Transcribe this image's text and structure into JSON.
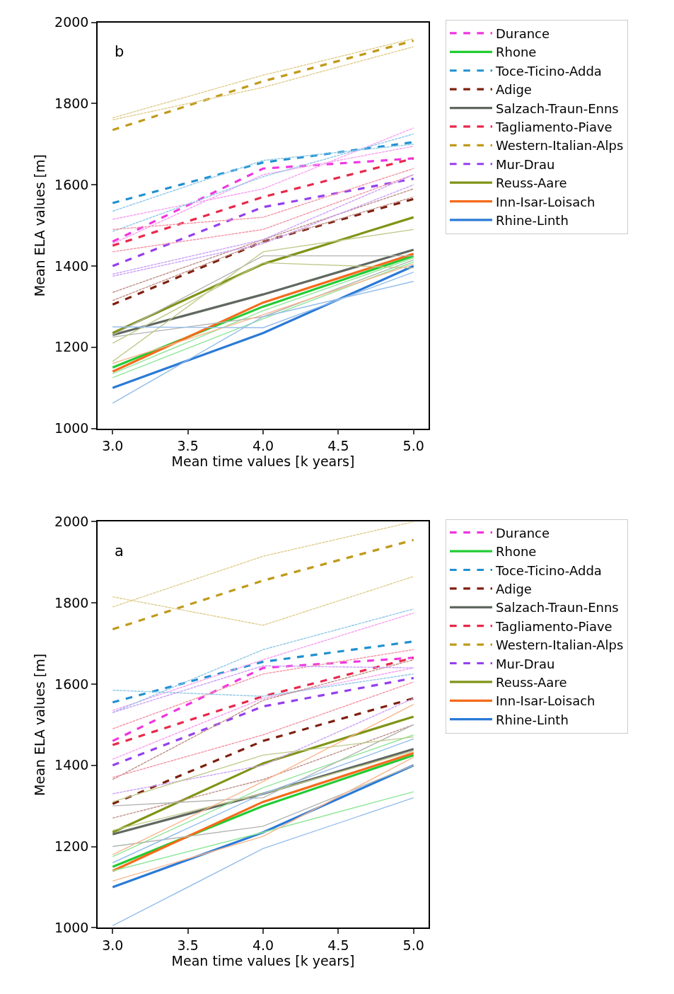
{
  "chart_data": [
    {
      "type": "line",
      "annotations": [
        "b"
      ],
      "xlabel": "Mean time values [k years]",
      "ylabel": "Mean ELA values [m]",
      "x": [
        3,
        4,
        5
      ],
      "xlim": [
        2.9,
        5.1
      ],
      "xticks": [
        {
          "value": 3,
          "label": "3.0"
        },
        {
          "value": 3.5,
          "label": "3.5"
        },
        {
          "value": 4,
          "label": "4.0"
        },
        {
          "value": 4.5,
          "label": "4.5"
        },
        {
          "value": 5,
          "label": "5.0"
        }
      ],
      "ylim": [
        1000,
        2000
      ],
      "yticks": [
        1000,
        1200,
        1400,
        1600,
        1800,
        2000
      ],
      "legend": "top right",
      "marker": "none",
      "series": [
        {
          "name": "Durance",
          "color": "#f035e0",
          "values": [
            1460,
            1640,
            1665
          ],
          "line_style": "dashed"
        },
        {
          "name": "Rhone",
          "color": "#22cc33",
          "values": [
            1150,
            1300,
            1425
          ],
          "line_style": "solid"
        },
        {
          "name": "Toce-Ticino-Adda",
          "color": "#1f90d0",
          "values": [
            1555,
            1655,
            1705
          ],
          "line_style": "dashed"
        },
        {
          "name": "Adige",
          "color": "#7f1f0f",
          "values": [
            1305,
            1460,
            1565
          ],
          "line_style": "dashed"
        },
        {
          "name": "Salzach-Traun-Enns",
          "color": "#606860",
          "values": [
            1230,
            1330,
            1440
          ],
          "line_style": "solid"
        },
        {
          "name": "Tagliamento-Piave",
          "color": "#e8284a",
          "values": [
            1450,
            1570,
            1665
          ],
          "line_style": "dashed"
        },
        {
          "name": "Western-Italian-Alps",
          "color": "#c09a1a",
          "values": [
            1735,
            1855,
            1955
          ],
          "line_style": "dashed"
        },
        {
          "name": "Mur-Drau",
          "color": "#9440ee",
          "values": [
            1400,
            1545,
            1615
          ],
          "line_style": "dashed"
        },
        {
          "name": "Reuss-Aare",
          "color": "#7f9416",
          "values": [
            1235,
            1405,
            1520
          ],
          "line_style": "solid"
        },
        {
          "name": "Inn-Isar-Loisach",
          "color": "#f56a1a",
          "values": [
            1140,
            1310,
            1430
          ],
          "line_style": "solid"
        },
        {
          "name": "Rhine-Linth",
          "color": "#2a7ad6",
          "values": [
            1100,
            1235,
            1400
          ],
          "line_style": "solid"
        },
        {
          "color": "#f7a0f0",
          "values": [
            1515,
            1590,
            1740
          ],
          "line_style": "dashed"
        },
        {
          "color": "#f7a0f0",
          "values": [
            1455,
            1625,
            1695
          ],
          "line_style": "dashed"
        },
        {
          "color": "#90e699",
          "values": [
            1135,
            1290,
            1420
          ],
          "line_style": "solid"
        },
        {
          "color": "#90e699",
          "values": [
            1125,
            1270,
            1410
          ],
          "line_style": "solid"
        },
        {
          "color": "#8fc8e8",
          "values": [
            1535,
            1660,
            1700
          ],
          "line_style": "dashed"
        },
        {
          "color": "#8fc8e8",
          "values": [
            1485,
            1620,
            1725
          ],
          "line_style": "dashed"
        },
        {
          "color": "#bf8f87",
          "values": [
            1335,
            1465,
            1590
          ],
          "line_style": "dashed"
        },
        {
          "color": "#bf8f87",
          "values": [
            1315,
            1460,
            1570
          ],
          "line_style": "dashed"
        },
        {
          "color": "#b0b4b0",
          "values": [
            1230,
            1425,
            1425
          ],
          "line_style": "solid"
        },
        {
          "color": "#b0b4b0",
          "values": [
            1225,
            1275,
            1415
          ],
          "line_style": "solid"
        },
        {
          "color": "#f394a5",
          "values": [
            1490,
            1520,
            1640
          ],
          "line_style": "dashed"
        },
        {
          "color": "#f394a5",
          "values": [
            1435,
            1490,
            1625
          ],
          "line_style": "dashed"
        },
        {
          "color": "#e0cd8d",
          "values": [
            1765,
            1870,
            1960
          ],
          "line_style": "dashed"
        },
        {
          "color": "#e0cd8d",
          "values": [
            1760,
            1840,
            1940
          ],
          "line_style": "dashed"
        },
        {
          "color": "#caa0f7",
          "values": [
            1380,
            1465,
            1625
          ],
          "line_style": "dashed"
        },
        {
          "color": "#caa0f7",
          "values": [
            1375,
            1455,
            1600
          ],
          "line_style": "dashed"
        },
        {
          "color": "#bfca8b",
          "values": [
            1165,
            1435,
            1490
          ],
          "line_style": "solid"
        },
        {
          "color": "#bfca8b",
          "values": [
            1210,
            1408,
            1395
          ],
          "line_style": "solid"
        },
        {
          "color": "#fab58d",
          "values": [
            1160,
            1280,
            1405
          ],
          "line_style": "solid"
        },
        {
          "color": "#95bdeb",
          "values": [
            1250,
            1248,
            1385
          ],
          "line_style": "solid"
        },
        {
          "color": "#95bdeb",
          "values": [
            1062,
            1275,
            1362
          ],
          "line_style": "solid"
        }
      ]
    },
    {
      "type": "line",
      "annotations": [
        "a"
      ],
      "xlabel": "Mean time values [k years]",
      "ylabel": "Mean ELA values [m]",
      "x": [
        3,
        4,
        5
      ],
      "xlim": [
        2.9,
        5.1
      ],
      "xticks": [
        {
          "value": 3,
          "label": "3.0"
        },
        {
          "value": 3.5,
          "label": "3.5"
        },
        {
          "value": 4,
          "label": "4.0"
        },
        {
          "value": 4.5,
          "label": "4.5"
        },
        {
          "value": 5,
          "label": "5.0"
        }
      ],
      "ylim": [
        1000,
        2000
      ],
      "yticks": [
        1000,
        1200,
        1400,
        1600,
        1800,
        2000
      ],
      "legend": "top right",
      "marker": "none",
      "series": [
        {
          "name": "Durance",
          "color": "#f035e0",
          "values": [
            1460,
            1640,
            1665
          ],
          "line_style": "dashed"
        },
        {
          "name": "Rhone",
          "color": "#22cc33",
          "values": [
            1150,
            1300,
            1425
          ],
          "line_style": "solid"
        },
        {
          "name": "Toce-Ticino-Adda",
          "color": "#1f90d0",
          "values": [
            1555,
            1655,
            1705
          ],
          "line_style": "dashed"
        },
        {
          "name": "Adige",
          "color": "#7f1f0f",
          "values": [
            1305,
            1460,
            1565
          ],
          "line_style": "dashed"
        },
        {
          "name": "Salzach-Traun-Enns",
          "color": "#606860",
          "values": [
            1230,
            1330,
            1440
          ],
          "line_style": "solid"
        },
        {
          "name": "Tagliamento-Piave",
          "color": "#e8284a",
          "values": [
            1450,
            1570,
            1665
          ],
          "line_style": "dashed"
        },
        {
          "name": "Western-Italian-Alps",
          "color": "#c09a1a",
          "values": [
            1735,
            1855,
            1955
          ],
          "line_style": "dashed"
        },
        {
          "name": "Mur-Drau",
          "color": "#9440ee",
          "values": [
            1400,
            1545,
            1615
          ],
          "line_style": "dashed"
        },
        {
          "name": "Reuss-Aare",
          "color": "#7f9416",
          "values": [
            1235,
            1405,
            1520
          ],
          "line_style": "solid"
        },
        {
          "name": "Inn-Isar-Loisach",
          "color": "#f56a1a",
          "values": [
            1140,
            1310,
            1430
          ],
          "line_style": "solid"
        },
        {
          "name": "Rhine-Linth",
          "color": "#2a7ad6",
          "values": [
            1100,
            1235,
            1400
          ],
          "line_style": "solid"
        },
        {
          "color": "#f7a0f0",
          "values": [
            1535,
            1660,
            1775
          ],
          "line_style": "dashed"
        },
        {
          "color": "#f7a0f0",
          "values": [
            1415,
            1565,
            1640
          ],
          "line_style": "dashed"
        },
        {
          "color": "#90e699",
          "values": [
            1175,
            1345,
            1475
          ],
          "line_style": "solid"
        },
        {
          "color": "#90e699",
          "values": [
            1140,
            1235,
            1335
          ],
          "line_style": "solid"
        },
        {
          "color": "#8fc8e8",
          "values": [
            1530,
            1685,
            1785
          ],
          "line_style": "dashed"
        },
        {
          "color": "#8fc8e8",
          "values": [
            1585,
            1570,
            1625
          ],
          "line_style": "dashed"
        },
        {
          "color": "#bf8f87",
          "values": [
            1365,
            1560,
            1660
          ],
          "line_style": "dashed"
        },
        {
          "color": "#bf8f87",
          "values": [
            1270,
            1365,
            1500
          ],
          "line_style": "dashed"
        },
        {
          "color": "#b0b4b0",
          "values": [
            1300,
            1320,
            1500
          ],
          "line_style": "solid"
        },
        {
          "color": "#b0b4b0",
          "values": [
            1200,
            1250,
            1400
          ],
          "line_style": "solid"
        },
        {
          "color": "#f394a5",
          "values": [
            1490,
            1625,
            1685
          ],
          "line_style": "dashed"
        },
        {
          "color": "#f394a5",
          "values": [
            1370,
            1475,
            1605
          ],
          "line_style": "dashed"
        },
        {
          "color": "#e0cd8d",
          "values": [
            1790,
            1915,
            2000
          ],
          "line_style": "dashed"
        },
        {
          "color": "#e0cd8d",
          "values": [
            1815,
            1745,
            1865
          ],
          "line_style": "dashed"
        },
        {
          "color": "#caa0f7",
          "values": [
            1530,
            1645,
            1640
          ],
          "line_style": "dashed"
        },
        {
          "color": "#caa0f7",
          "values": [
            1330,
            1400,
            1565
          ],
          "line_style": "dashed"
        },
        {
          "color": "#bfca8b",
          "values": [
            1310,
            1425,
            1470
          ],
          "line_style": "solid"
        },
        {
          "color": "#bfca8b",
          "values": [
            1240,
            1330,
            1435
          ],
          "line_style": "solid"
        },
        {
          "color": "#fab58d",
          "values": [
            1180,
            1360,
            1550
          ],
          "line_style": "solid"
        },
        {
          "color": "#fab58d",
          "values": [
            1115,
            1225,
            1420
          ],
          "line_style": "solid"
        },
        {
          "color": "#95bdeb",
          "values": [
            1160,
            1330,
            1465
          ],
          "line_style": "solid"
        },
        {
          "color": "#95bdeb",
          "values": [
            1005,
            1195,
            1320
          ],
          "line_style": "solid"
        }
      ]
    }
  ]
}
